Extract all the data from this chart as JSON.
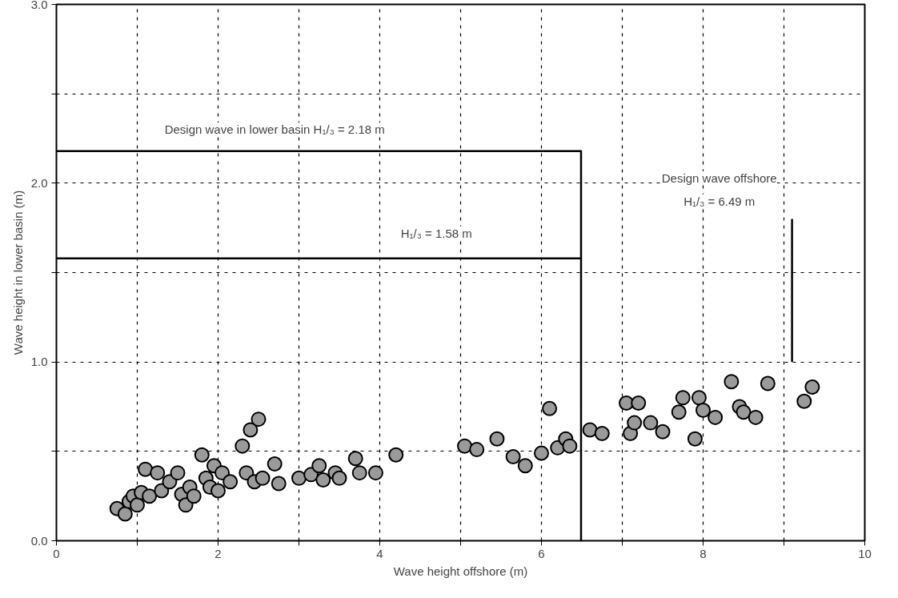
{
  "chart_data": {
    "type": "scatter",
    "xlabel": "Wave height offshore (m)",
    "ylabel": "Wave height in lower basin (m)",
    "xlim": [
      0,
      10
    ],
    "ylim": [
      0,
      3
    ],
    "xticks": [
      0,
      {
        "value": 1,
        "label": null
      },
      2,
      {
        "value": 3,
        "label": null
      },
      4,
      {
        "value": 5,
        "label": null
      },
      6,
      {
        "value": 7,
        "label": null
      },
      8,
      {
        "value": 9,
        "label": null
      },
      10
    ],
    "yticks": [
      {
        "value": 0,
        "label": "0.0"
      },
      {
        "value": 0.5,
        "label": null
      },
      {
        "value": 1,
        "label": "1.0"
      },
      {
        "value": 1.5,
        "label": null
      },
      {
        "value": 2,
        "label": "2.0"
      },
      {
        "value": 2.5,
        "label": null
      },
      {
        "value": 3,
        "label": "3.0"
      }
    ],
    "grid": true,
    "series": [
      {
        "marker": "circle",
        "color": "#9a9a9a",
        "x": [
          0.75,
          0.85,
          0.9,
          0.95,
          1.0,
          1.05,
          1.1,
          1.15,
          1.25,
          1.3,
          1.4,
          1.5,
          1.55,
          1.6,
          1.65,
          1.7,
          1.8,
          1.85,
          1.9,
          1.95,
          2.0,
          2.05,
          2.15,
          2.3,
          2.35,
          2.4,
          2.5,
          2.45,
          2.55,
          2.7,
          2.75,
          3.0,
          3.15,
          3.25,
          3.3,
          3.45,
          3.5,
          3.7,
          3.75,
          3.95,
          4.2,
          5.05,
          5.2,
          5.45,
          5.65,
          5.8,
          6.0,
          6.1,
          6.2,
          6.3,
          6.35,
          6.6,
          6.75,
          7.05,
          7.1,
          7.2,
          7.15,
          7.35,
          7.5,
          7.7,
          7.75,
          7.9,
          7.95,
          8.0,
          8.15,
          8.35,
          8.45,
          8.5,
          8.65,
          8.8,
          9.25,
          9.35
        ],
        "values": [
          0.18,
          0.15,
          0.22,
          0.25,
          0.2,
          0.27,
          0.4,
          0.25,
          0.38,
          0.28,
          0.33,
          0.38,
          0.26,
          0.2,
          0.3,
          0.25,
          0.48,
          0.35,
          0.3,
          0.42,
          0.28,
          0.38,
          0.33,
          0.53,
          0.38,
          0.62,
          0.68,
          0.33,
          0.35,
          0.43,
          0.32,
          0.35,
          0.37,
          0.42,
          0.34,
          0.38,
          0.35,
          0.46,
          0.38,
          0.38,
          0.48,
          0.53,
          0.51,
          0.57,
          0.47,
          0.42,
          0.49,
          0.74,
          0.52,
          0.57,
          0.53,
          0.62,
          0.6,
          0.77,
          0.6,
          0.77,
          0.66,
          0.66,
          0.61,
          0.72,
          0.8,
          0.57,
          0.8,
          0.73,
          0.69,
          0.89,
          0.75,
          0.72,
          0.69,
          0.88,
          0.78,
          0.86
        ]
      },
      {
        "type": "line",
        "color": "#000000",
        "x": [
          0,
          6.49,
          6.49
        ],
        "values": [
          2.18,
          2.18,
          0
        ]
      },
      {
        "type": "line",
        "color": "#000000",
        "x": [
          0,
          6.49
        ],
        "values": [
          1.58,
          1.58
        ]
      },
      {
        "type": "line",
        "color": "#000000",
        "x": [
          9.1,
          9.1
        ],
        "values": [
          1.0,
          1.8
        ]
      }
    ],
    "annotations": [
      "Design wave in lower basin H₁/₃ = 2.18 m",
      "H₁/₃ = 1.58 m",
      "Design wave offshore",
      "H₁/₃ = 6.49 m"
    ]
  }
}
